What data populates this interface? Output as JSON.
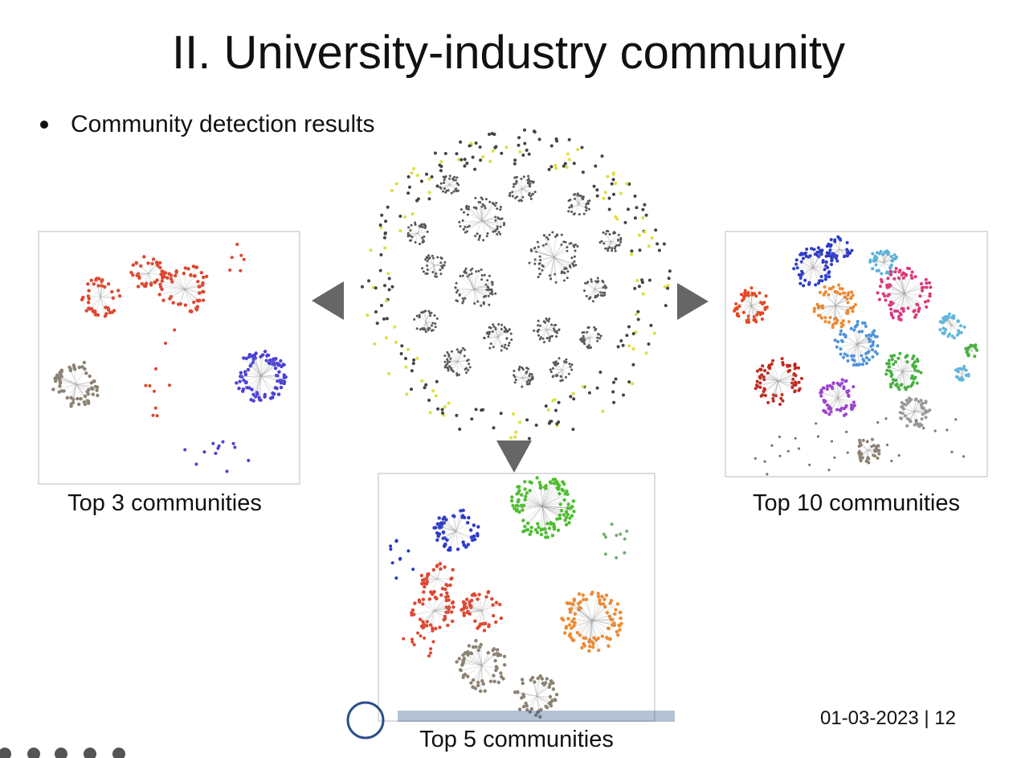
{
  "slide": {
    "title": "II. University-industry community",
    "bullet": "Community detection results",
    "captions": {
      "left": "Top 3 communities",
      "right": "Top 10 communities",
      "bottom": "Top 5 communities"
    },
    "footer": "01-03-2023 | 12"
  }
}
